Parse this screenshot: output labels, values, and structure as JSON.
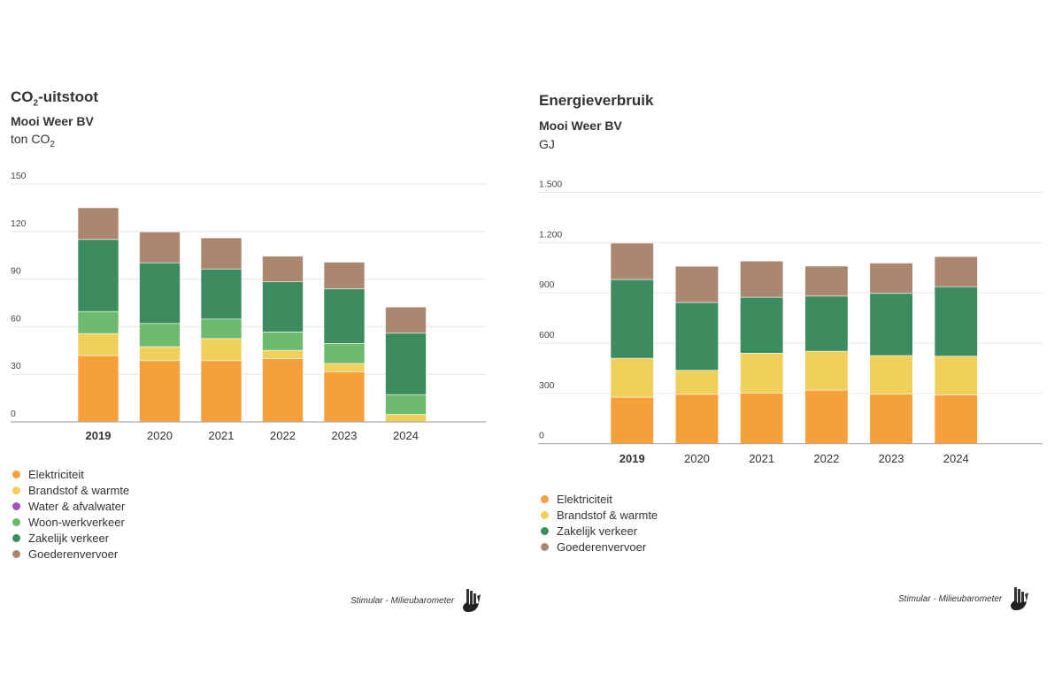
{
  "colors": {
    "Elektriciteit": "#f5a03a",
    "Brandstof & warmte": "#f1cf5b",
    "Water & afvalwater": "#9b59b6",
    "Woon-werkverkeer": "#6db96d",
    "Zakelijk verkeer": "#3d8c5f",
    "Goederenvervoer": "#ab8770"
  },
  "footer": {
    "text": "Stimular - Milieubarometer",
    "icon": "milieubarometer-hand-logo"
  },
  "chart_data": [
    {
      "type": "bar",
      "stacked": true,
      "title": "CO₂-uitstoot",
      "title_main": "CO",
      "title_sub": "2",
      "title_rest": "-uitstoot",
      "subtitle": "Mooi Weer BV",
      "unit_main": "ton CO",
      "unit_sub": "2",
      "ylabel": "ton CO₂",
      "xlabel": "",
      "categories": [
        "2019",
        "2020",
        "2021",
        "2022",
        "2023",
        "2024"
      ],
      "highlighted_category": "2019",
      "ylim": [
        0,
        150
      ],
      "yticks": [
        0,
        30,
        60,
        90,
        120,
        150
      ],
      "ytick_labels": [
        "0",
        "30",
        "60",
        "90",
        "120",
        "150"
      ],
      "grid": true,
      "legend_position": "bottom-left",
      "legend": [
        "Elektriciteit",
        "Brandstof & warmte",
        "Water & afvalwater",
        "Woon-werkverkeer",
        "Zakelijk verkeer",
        "Goederenvervoer"
      ],
      "series": [
        {
          "name": "Elektriciteit",
          "values": [
            41.8,
            38.6,
            38.6,
            39.9,
            31.6,
            0
          ]
        },
        {
          "name": "Brandstof & warmte",
          "values": [
            13.9,
            8.8,
            13.9,
            5.2,
            5.2,
            4.7
          ]
        },
        {
          "name": "Water & afvalwater",
          "values": [
            0,
            0,
            0,
            0,
            0,
            0
          ]
        },
        {
          "name": "Woon-werkverkeer",
          "values": [
            13.9,
            14.6,
            12.3,
            11.6,
            12.6,
            12.5
          ]
        },
        {
          "name": "Zakelijk verkeer",
          "values": [
            45.4,
            38.3,
            31.6,
            31.6,
            34.6,
            38.7
          ]
        },
        {
          "name": "Goederenvervoer",
          "values": [
            20.0,
            19.5,
            19.6,
            16.2,
            16.7,
            16.5
          ]
        }
      ]
    },
    {
      "type": "bar",
      "stacked": true,
      "title": "Energieverbruik",
      "subtitle": "Mooi Weer BV",
      "unit_main": "GJ",
      "ylabel": "GJ",
      "xlabel": "",
      "categories": [
        "2019",
        "2020",
        "2021",
        "2022",
        "2023",
        "2024"
      ],
      "highlighted_category": "2019",
      "ylim": [
        0,
        1500
      ],
      "yticks": [
        0,
        300,
        600,
        900,
        1200,
        1500
      ],
      "ytick_labels": [
        "0",
        "300",
        "600",
        "900",
        "1.200",
        "1.500"
      ],
      "grid": true,
      "legend_position": "bottom-left",
      "legend": [
        "Elektriciteit",
        "Brandstof & warmte",
        "Zakelijk verkeer",
        "Goederenvervoer"
      ],
      "series": [
        {
          "name": "Elektriciteit",
          "values": [
            278,
            295,
            303,
            320,
            296,
            292
          ]
        },
        {
          "name": "Brandstof & warmte",
          "values": [
            232,
            143,
            237,
            232,
            230,
            230
          ]
        },
        {
          "name": "Zakelijk verkeer",
          "values": [
            470,
            405,
            334,
            329,
            371,
            415
          ]
        },
        {
          "name": "Goederenvervoer",
          "values": [
            217,
            216,
            216,
            179,
            181,
            180
          ]
        }
      ]
    }
  ]
}
